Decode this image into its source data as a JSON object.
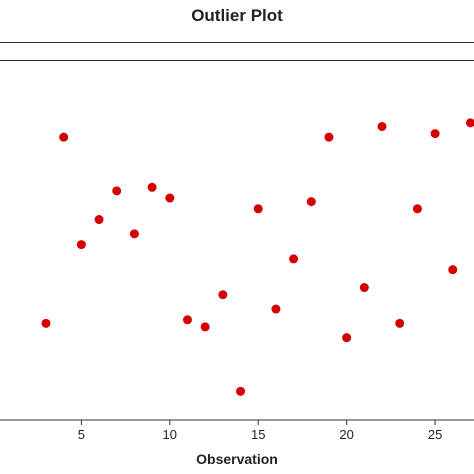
{
  "chart_data": {
    "type": "scatter",
    "title": "Outlier Plot",
    "xlabel": "Observation",
    "ylabel": "",
    "xlim": [
      0.4,
      27.2
    ],
    "ylim": [
      0,
      10
    ],
    "x_ticks": [
      5,
      10,
      15,
      20,
      25
    ],
    "grid": false,
    "legend": "none",
    "point_color": "#d40000",
    "series": [
      {
        "x": [
          3,
          4,
          5,
          6,
          7,
          8,
          9,
          10,
          11,
          12,
          13,
          14,
          15,
          16,
          17,
          18,
          19,
          20,
          21,
          22,
          23,
          24,
          25,
          26,
          27
        ],
        "y": [
          2.7,
          7.9,
          4.9,
          5.6,
          6.4,
          5.2,
          6.5,
          6.2,
          2.8,
          2.6,
          3.5,
          0.8,
          5.9,
          3.1,
          4.5,
          6.1,
          7.9,
          2.3,
          3.7,
          8.2,
          2.7,
          5.9,
          8.0,
          4.2,
          8.3
        ]
      }
    ]
  }
}
